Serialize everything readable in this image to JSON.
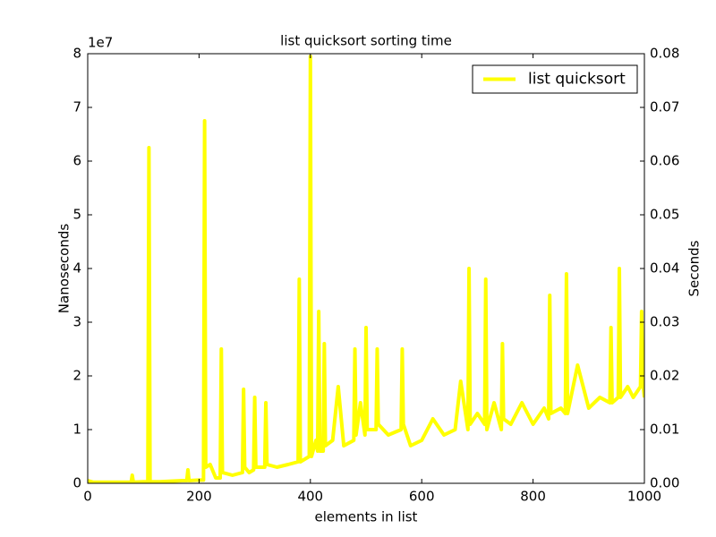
{
  "chart_data": {
    "type": "line",
    "title": "list quicksort sorting time",
    "x_label": "elements in list",
    "y_label": "Nanoseconds",
    "y2_label": "Seconds",
    "y_offset_label": "1e7",
    "legend": "upper right",
    "xlim": [
      0,
      1000
    ],
    "xticks": [
      0,
      200,
      400,
      600,
      800,
      1000
    ],
    "ylim": [
      0,
      8
    ],
    "yticks": [
      0,
      1,
      2,
      3,
      4,
      5,
      6,
      7,
      8
    ],
    "y2lim": [
      0,
      0.08
    ],
    "y2ticks": [
      {
        "value": 0,
        "label": "0.00"
      },
      0.01,
      0.02,
      0.03,
      0.04,
      0.05,
      0.06,
      0.07,
      0.08
    ],
    "x": [
      0,
      10,
      20,
      40,
      60,
      78,
      80,
      82,
      100,
      108,
      110,
      112,
      130,
      150,
      170,
      178,
      180,
      182,
      200,
      208,
      210,
      212,
      220,
      230,
      238,
      240,
      242,
      260,
      278,
      280,
      282,
      290,
      298,
      300,
      302,
      318,
      320,
      322,
      340,
      360,
      378,
      380,
      382,
      390,
      398,
      400,
      402,
      410,
      413,
      415,
      417,
      423,
      425,
      427,
      440,
      450,
      460,
      478,
      480,
      482,
      490,
      498,
      500,
      502,
      518,
      520,
      522,
      540,
      563,
      565,
      567,
      580,
      600,
      620,
      640,
      660,
      670,
      683,
      685,
      687,
      700,
      713,
      715,
      717,
      730,
      743,
      745,
      747,
      760,
      780,
      800,
      820,
      828,
      830,
      832,
      850,
      858,
      860,
      862,
      880,
      900,
      920,
      938,
      940,
      942,
      953,
      955,
      957,
      970,
      980,
      993,
      995,
      997,
      1000
    ],
    "series": [
      {
        "name": "list quicksort",
        "color": "#ffff00",
        "values": [
          0.05,
          0.02,
          0.02,
          0.02,
          0.02,
          0.02,
          0.15,
          0.02,
          0.03,
          0.03,
          6.25,
          0.03,
          0.03,
          0.04,
          0.05,
          0.05,
          0.25,
          0.05,
          0.06,
          0.06,
          6.75,
          0.3,
          0.35,
          0.1,
          0.1,
          2.5,
          0.2,
          0.15,
          0.2,
          1.75,
          0.3,
          0.2,
          0.25,
          1.6,
          0.3,
          0.3,
          1.5,
          0.35,
          0.3,
          0.35,
          0.4,
          3.8,
          0.4,
          0.45,
          0.5,
          7.95,
          0.5,
          0.8,
          0.6,
          3.2,
          0.6,
          0.6,
          2.6,
          0.7,
          0.8,
          1.8,
          0.7,
          0.8,
          2.5,
          0.9,
          1.5,
          0.9,
          2.9,
          1.0,
          1.0,
          2.5,
          1.1,
          0.9,
          1.0,
          2.5,
          1.1,
          0.7,
          0.8,
          1.2,
          0.9,
          1.0,
          1.9,
          1.0,
          4.0,
          1.1,
          1.3,
          1.1,
          3.8,
          1.0,
          1.5,
          1.0,
          2.6,
          1.2,
          1.1,
          1.5,
          1.1,
          1.4,
          1.2,
          3.5,
          1.3,
          1.4,
          1.3,
          3.9,
          1.3,
          2.2,
          1.4,
          1.6,
          1.5,
          2.9,
          1.5,
          1.6,
          4.0,
          1.6,
          1.8,
          1.6,
          1.8,
          3.2,
          1.9,
          1.6
        ]
      }
    ]
  }
}
